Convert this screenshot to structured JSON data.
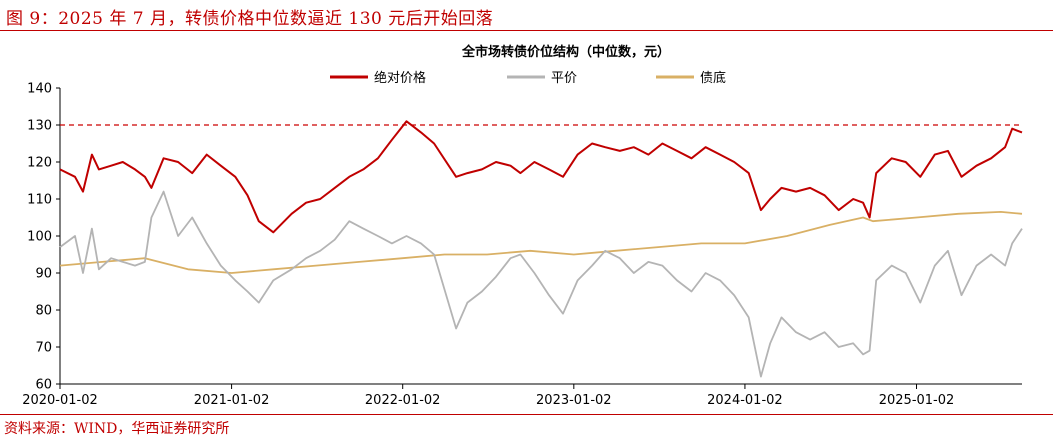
{
  "figure_title": "图 9：2025 年 7 月，转债价格中位数逼近 130 元后开始回落",
  "source": "资料来源：WIND，华西证券研究所",
  "chart_data": {
    "type": "line",
    "title": "全市场转债价位结构（中位数，元）",
    "ylim": [
      60,
      140
    ],
    "yticks": [
      60,
      70,
      80,
      90,
      100,
      110,
      120,
      130,
      140
    ],
    "xlim": [
      "2020-01-02",
      "2025-08-15"
    ],
    "xticks": [
      "2020-01-02",
      "2021-01-02",
      "2022-01-02",
      "2023-01-02",
      "2024-01-02",
      "2025-01-02"
    ],
    "grid": false,
    "legend_position": "top-center",
    "reference_line": {
      "y": 130,
      "style": "dashed",
      "color": "#cc0000"
    },
    "series": [
      {
        "name": "绝对价格",
        "color": "#c00000",
        "x": [
          "2020-01-02",
          "2020-02-03",
          "2020-02-20",
          "2020-03-10",
          "2020-03-25",
          "2020-04-20",
          "2020-05-15",
          "2020-06-10",
          "2020-07-01",
          "2020-07-15",
          "2020-08-10",
          "2020-09-10",
          "2020-10-10",
          "2020-11-10",
          "2020-12-10",
          "2021-01-10",
          "2021-02-05",
          "2021-03-01",
          "2021-04-01",
          "2021-05-10",
          "2021-06-10",
          "2021-07-10",
          "2021-08-10",
          "2021-09-10",
          "2021-10-10",
          "2021-11-10",
          "2021-12-10",
          "2022-01-10",
          "2022-02-10",
          "2022-03-10",
          "2022-04-26",
          "2022-05-20",
          "2022-06-20",
          "2022-07-20",
          "2022-08-20",
          "2022-09-10",
          "2022-10-10",
          "2022-11-10",
          "2022-12-10",
          "2023-01-10",
          "2023-02-10",
          "2023-03-10",
          "2023-04-10",
          "2023-05-10",
          "2023-06-10",
          "2023-07-10",
          "2023-08-10",
          "2023-09-10",
          "2023-10-10",
          "2023-11-10",
          "2023-12-10",
          "2024-01-10",
          "2024-02-05",
          "2024-02-25",
          "2024-03-20",
          "2024-04-20",
          "2024-05-20",
          "2024-06-20",
          "2024-07-20",
          "2024-08-20",
          "2024-09-10",
          "2024-09-24",
          "2024-10-08",
          "2024-11-10",
          "2024-12-10",
          "2025-01-10",
          "2025-02-10",
          "2025-03-10",
          "2025-04-08",
          "2025-05-10",
          "2025-06-10",
          "2025-07-10",
          "2025-07-25",
          "2025-08-15"
        ],
        "y": [
          118,
          116,
          112,
          122,
          118,
          119,
          120,
          118,
          116,
          113,
          121,
          120,
          117,
          122,
          119,
          116,
          111,
          104,
          101,
          106,
          109,
          110,
          113,
          116,
          118,
          121,
          126,
          131,
          128,
          125,
          116,
          117,
          118,
          120,
          119,
          117,
          120,
          118,
          116,
          122,
          125,
          124,
          123,
          124,
          122,
          125,
          123,
          121,
          124,
          122,
          120,
          117,
          107,
          110,
          113,
          112,
          113,
          111,
          107,
          110,
          109,
          105,
          117,
          121,
          120,
          116,
          122,
          123,
          116,
          119,
          121,
          124,
          129,
          128
        ]
      },
      {
        "name": "平价",
        "color": "#b4b4b4",
        "x": [
          "2020-01-02",
          "2020-02-03",
          "2020-02-20",
          "2020-03-10",
          "2020-03-25",
          "2020-04-20",
          "2020-05-15",
          "2020-06-10",
          "2020-07-01",
          "2020-07-15",
          "2020-08-10",
          "2020-09-10",
          "2020-10-10",
          "2020-11-10",
          "2020-12-10",
          "2021-01-10",
          "2021-02-05",
          "2021-03-01",
          "2021-04-01",
          "2021-05-10",
          "2021-06-10",
          "2021-07-10",
          "2021-08-10",
          "2021-09-10",
          "2021-10-10",
          "2021-11-10",
          "2021-12-10",
          "2022-01-10",
          "2022-02-10",
          "2022-03-10",
          "2022-04-26",
          "2022-05-20",
          "2022-06-20",
          "2022-07-20",
          "2022-08-20",
          "2022-09-10",
          "2022-10-10",
          "2022-11-10",
          "2022-12-10",
          "2023-01-10",
          "2023-02-10",
          "2023-03-10",
          "2023-04-10",
          "2023-05-10",
          "2023-06-10",
          "2023-07-10",
          "2023-08-10",
          "2023-09-10",
          "2023-10-10",
          "2023-11-10",
          "2023-12-10",
          "2024-01-10",
          "2024-02-05",
          "2024-02-25",
          "2024-03-20",
          "2024-04-20",
          "2024-05-20",
          "2024-06-20",
          "2024-07-20",
          "2024-08-20",
          "2024-09-10",
          "2024-09-24",
          "2024-10-08",
          "2024-11-10",
          "2024-12-10",
          "2025-01-10",
          "2025-02-10",
          "2025-03-10",
          "2025-04-08",
          "2025-05-10",
          "2025-06-10",
          "2025-07-10",
          "2025-07-25",
          "2025-08-15"
        ],
        "y": [
          97,
          100,
          90,
          102,
          91,
          94,
          93,
          92,
          93,
          105,
          112,
          100,
          105,
          98,
          92,
          88,
          85,
          82,
          88,
          91,
          94,
          96,
          99,
          104,
          102,
          100,
          98,
          100,
          98,
          95,
          75,
          82,
          85,
          89,
          94,
          95,
          90,
          84,
          79,
          88,
          92,
          96,
          94,
          90,
          93,
          92,
          88,
          85,
          90,
          88,
          84,
          78,
          62,
          71,
          78,
          74,
          72,
          74,
          70,
          71,
          68,
          69,
          88,
          92,
          90,
          82,
          92,
          96,
          84,
          92,
          95,
          92,
          98,
          102
        ]
      },
      {
        "name": "债底",
        "color": "#d9b065",
        "x": [
          "2020-01-02",
          "2020-04-01",
          "2020-07-01",
          "2020-10-01",
          "2021-01-02",
          "2021-04-01",
          "2021-07-01",
          "2021-10-01",
          "2022-01-02",
          "2022-04-01",
          "2022-07-01",
          "2022-10-01",
          "2023-01-02",
          "2023-04-01",
          "2023-07-01",
          "2023-10-01",
          "2024-01-02",
          "2024-04-01",
          "2024-07-01",
          "2024-09-10",
          "2024-10-01",
          "2025-01-02",
          "2025-04-01",
          "2025-07-01",
          "2025-08-15"
        ],
        "y": [
          92,
          93,
          94,
          91,
          90,
          91,
          92,
          93,
          94,
          95,
          95,
          96,
          95,
          96,
          97,
          98,
          98,
          100,
          103,
          105,
          104,
          105,
          106,
          106.5,
          106
        ]
      }
    ]
  }
}
